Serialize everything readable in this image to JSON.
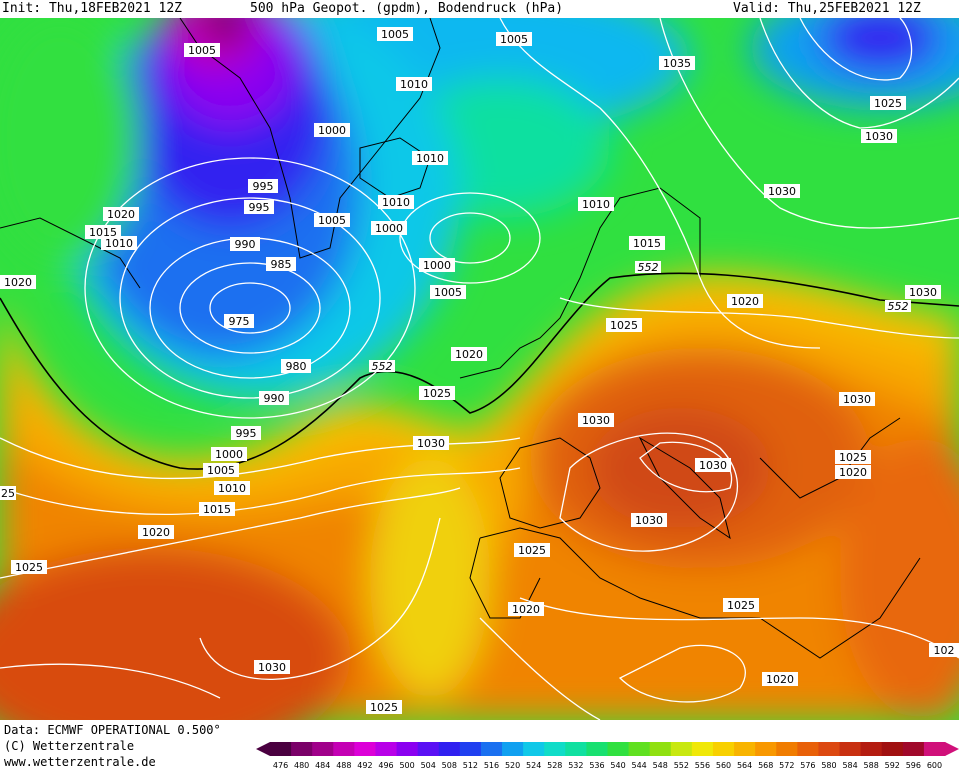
{
  "header": {
    "init": "Init: Thu,18FEB2021 12Z",
    "title": "500 hPa Geopot. (gpdm), Bodendruck (hPa)",
    "valid": "Valid: Thu,25FEB2021 12Z"
  },
  "footer": {
    "data_line": "Data: ECMWF OPERATIONAL 0.500°",
    "copyright": "(C) Wetterzentrale",
    "url": "www.wetterzentrale.de"
  },
  "scale": {
    "values": [
      "476",
      "480",
      "484",
      "488",
      "492",
      "496",
      "500",
      "504",
      "508",
      "512",
      "516",
      "520",
      "524",
      "528",
      "532",
      "536",
      "540",
      "544",
      "548",
      "552",
      "556",
      "560",
      "564",
      "568",
      "572",
      "576",
      "580",
      "584",
      "588",
      "592",
      "596",
      "600"
    ],
    "colors": [
      "#4a0040",
      "#7a0068",
      "#a0008a",
      "#c400b4",
      "#dc00d8",
      "#b800e8",
      "#8a00f0",
      "#5a10f4",
      "#3020f0",
      "#2040f0",
      "#1a70f0",
      "#10a0f0",
      "#10c8e8",
      "#10dcc8",
      "#10e0a0",
      "#18e070",
      "#30e040",
      "#60e020",
      "#90e010",
      "#c8e810",
      "#f0e808",
      "#f8d000",
      "#f8b400",
      "#f89800",
      "#f07c00",
      "#e86008",
      "#dc4810",
      "#c83010",
      "#b41c10",
      "#a01010",
      "#a0082a",
      "#d0107a"
    ]
  },
  "pressure_labels": [
    {
      "id": "l1",
      "text": "1005"
    },
    {
      "id": "l2",
      "text": "1005"
    },
    {
      "id": "l3",
      "text": "1005"
    },
    {
      "id": "l4",
      "text": "1035"
    },
    {
      "id": "l5",
      "text": "1010"
    },
    {
      "id": "l6",
      "text": "1000"
    },
    {
      "id": "l7",
      "text": "1010"
    },
    {
      "id": "l8",
      "text": "995"
    },
    {
      "id": "l9",
      "text": "995"
    },
    {
      "id": "l10",
      "text": "1005"
    },
    {
      "id": "l11",
      "text": "1010"
    },
    {
      "id": "l12",
      "text": "1000"
    },
    {
      "id": "l13",
      "text": "1020"
    },
    {
      "id": "l14",
      "text": "1015"
    },
    {
      "id": "l15",
      "text": "1010"
    },
    {
      "id": "l16",
      "text": "990"
    },
    {
      "id": "l17",
      "text": "985"
    },
    {
      "id": "l18",
      "text": "1000"
    },
    {
      "id": "l19",
      "text": "1005"
    },
    {
      "id": "l20",
      "text": "1010"
    },
    {
      "id": "l21",
      "text": "1015"
    },
    {
      "id": "l22",
      "text": "1020"
    },
    {
      "id": "l23",
      "text": "975"
    },
    {
      "id": "l24",
      "text": "980"
    },
    {
      "id": "l25",
      "text": "990"
    },
    {
      "id": "l26",
      "text": "995"
    },
    {
      "id": "l27",
      "text": "1000"
    },
    {
      "id": "l28",
      "text": "1005"
    },
    {
      "id": "l29",
      "text": "1010"
    },
    {
      "id": "l30",
      "text": "1015"
    },
    {
      "id": "l31",
      "text": "1020"
    },
    {
      "id": "l32",
      "text": "1020"
    },
    {
      "id": "l33",
      "text": "1025"
    },
    {
      "id": "l34",
      "text": "1030"
    },
    {
      "id": "l35",
      "text": "1025"
    },
    {
      "id": "l36",
      "text": "1030"
    },
    {
      "id": "l37",
      "text": "1025"
    },
    {
      "id": "l38",
      "text": "1030"
    },
    {
      "id": "l39",
      "text": "1030"
    },
    {
      "id": "l40",
      "text": "1030"
    },
    {
      "id": "l41",
      "text": "1030"
    },
    {
      "id": "l42",
      "text": "1025"
    },
    {
      "id": "l43",
      "text": "1020"
    },
    {
      "id": "l44",
      "text": "1030"
    },
    {
      "id": "l45",
      "text": "1025"
    },
    {
      "id": "l46",
      "text": "1020"
    },
    {
      "id": "l47",
      "text": "1025"
    },
    {
      "id": "l48",
      "text": "1020"
    },
    {
      "id": "l49",
      "text": "1030"
    },
    {
      "id": "l50",
      "text": "1025"
    },
    {
      "id": "l51",
      "text": "1020"
    },
    {
      "id": "l52",
      "text": "102"
    },
    {
      "id": "l53",
      "text": "25"
    },
    {
      "id": "l54",
      "text": "1030"
    },
    {
      "id": "l55",
      "text": "1025"
    },
    {
      "id": "l56",
      "text": "1020"
    },
    {
      "id": "l57",
      "text": "1025"
    }
  ],
  "geopot_labels": [
    {
      "id": "g1",
      "text": "552"
    },
    {
      "id": "g2",
      "text": "552"
    },
    {
      "id": "g3",
      "text": "552"
    }
  ]
}
